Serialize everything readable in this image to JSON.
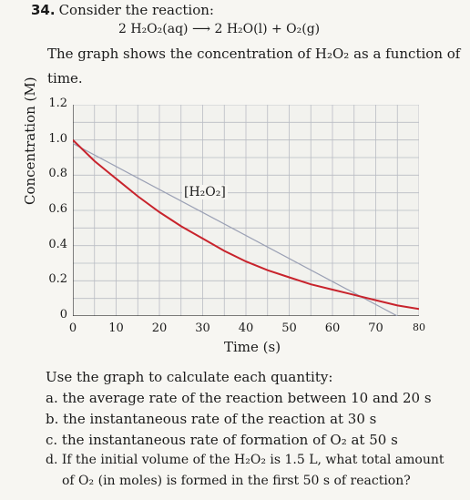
{
  "question": {
    "number": "34.",
    "title": "Consider the reaction:",
    "reaction": "2 H₂O₂(aq) ⟶ 2 H₂O(l) + O₂(g)",
    "description_line1": "The graph shows the concentration of H₂O₂ as a function of",
    "description_line2": "time."
  },
  "chart_data": {
    "type": "line",
    "title": "",
    "xlabel": "Time (s)",
    "ylabel": "Concentration (M)",
    "xlim": [
      0,
      80
    ],
    "ylim": [
      0,
      1.2
    ],
    "xticks": [
      "0",
      "10",
      "20",
      "30",
      "40",
      "50",
      "60",
      "70",
      "80"
    ],
    "yticks": [
      "0",
      "0.2",
      "0.4",
      "0.6",
      "0.8",
      "1.0",
      "1.2"
    ],
    "grid": true,
    "series": [
      {
        "name": "[H₂O₂]",
        "color": "#c8232c",
        "x": [
          0,
          5,
          10,
          15,
          20,
          25,
          30,
          35,
          40,
          45,
          50,
          55,
          60,
          65,
          70,
          75,
          80
        ],
        "y": [
          1.0,
          0.88,
          0.78,
          0.68,
          0.59,
          0.51,
          0.44,
          0.37,
          0.31,
          0.26,
          0.22,
          0.18,
          0.15,
          0.12,
          0.09,
          0.06,
          0.04
        ]
      }
    ],
    "tangent_line": {
      "color": "#9aa0b4",
      "x": [
        0,
        75
      ],
      "y": [
        0.98,
        0.0
      ]
    }
  },
  "tasks": {
    "intro": "Use the graph to calculate each quantity:",
    "a": "a. the average rate of the reaction between 10 and 20 s",
    "b": "b. the instantaneous rate of the reaction at 30 s",
    "c": "c. the instantaneous rate of formation of O₂ at 50 s",
    "d1": "d. If the initial volume of the H₂O₂ is 1.5 L, what total amount",
    "d2": "of O₂ (in moles) is formed in the first 50 s of reaction?"
  }
}
